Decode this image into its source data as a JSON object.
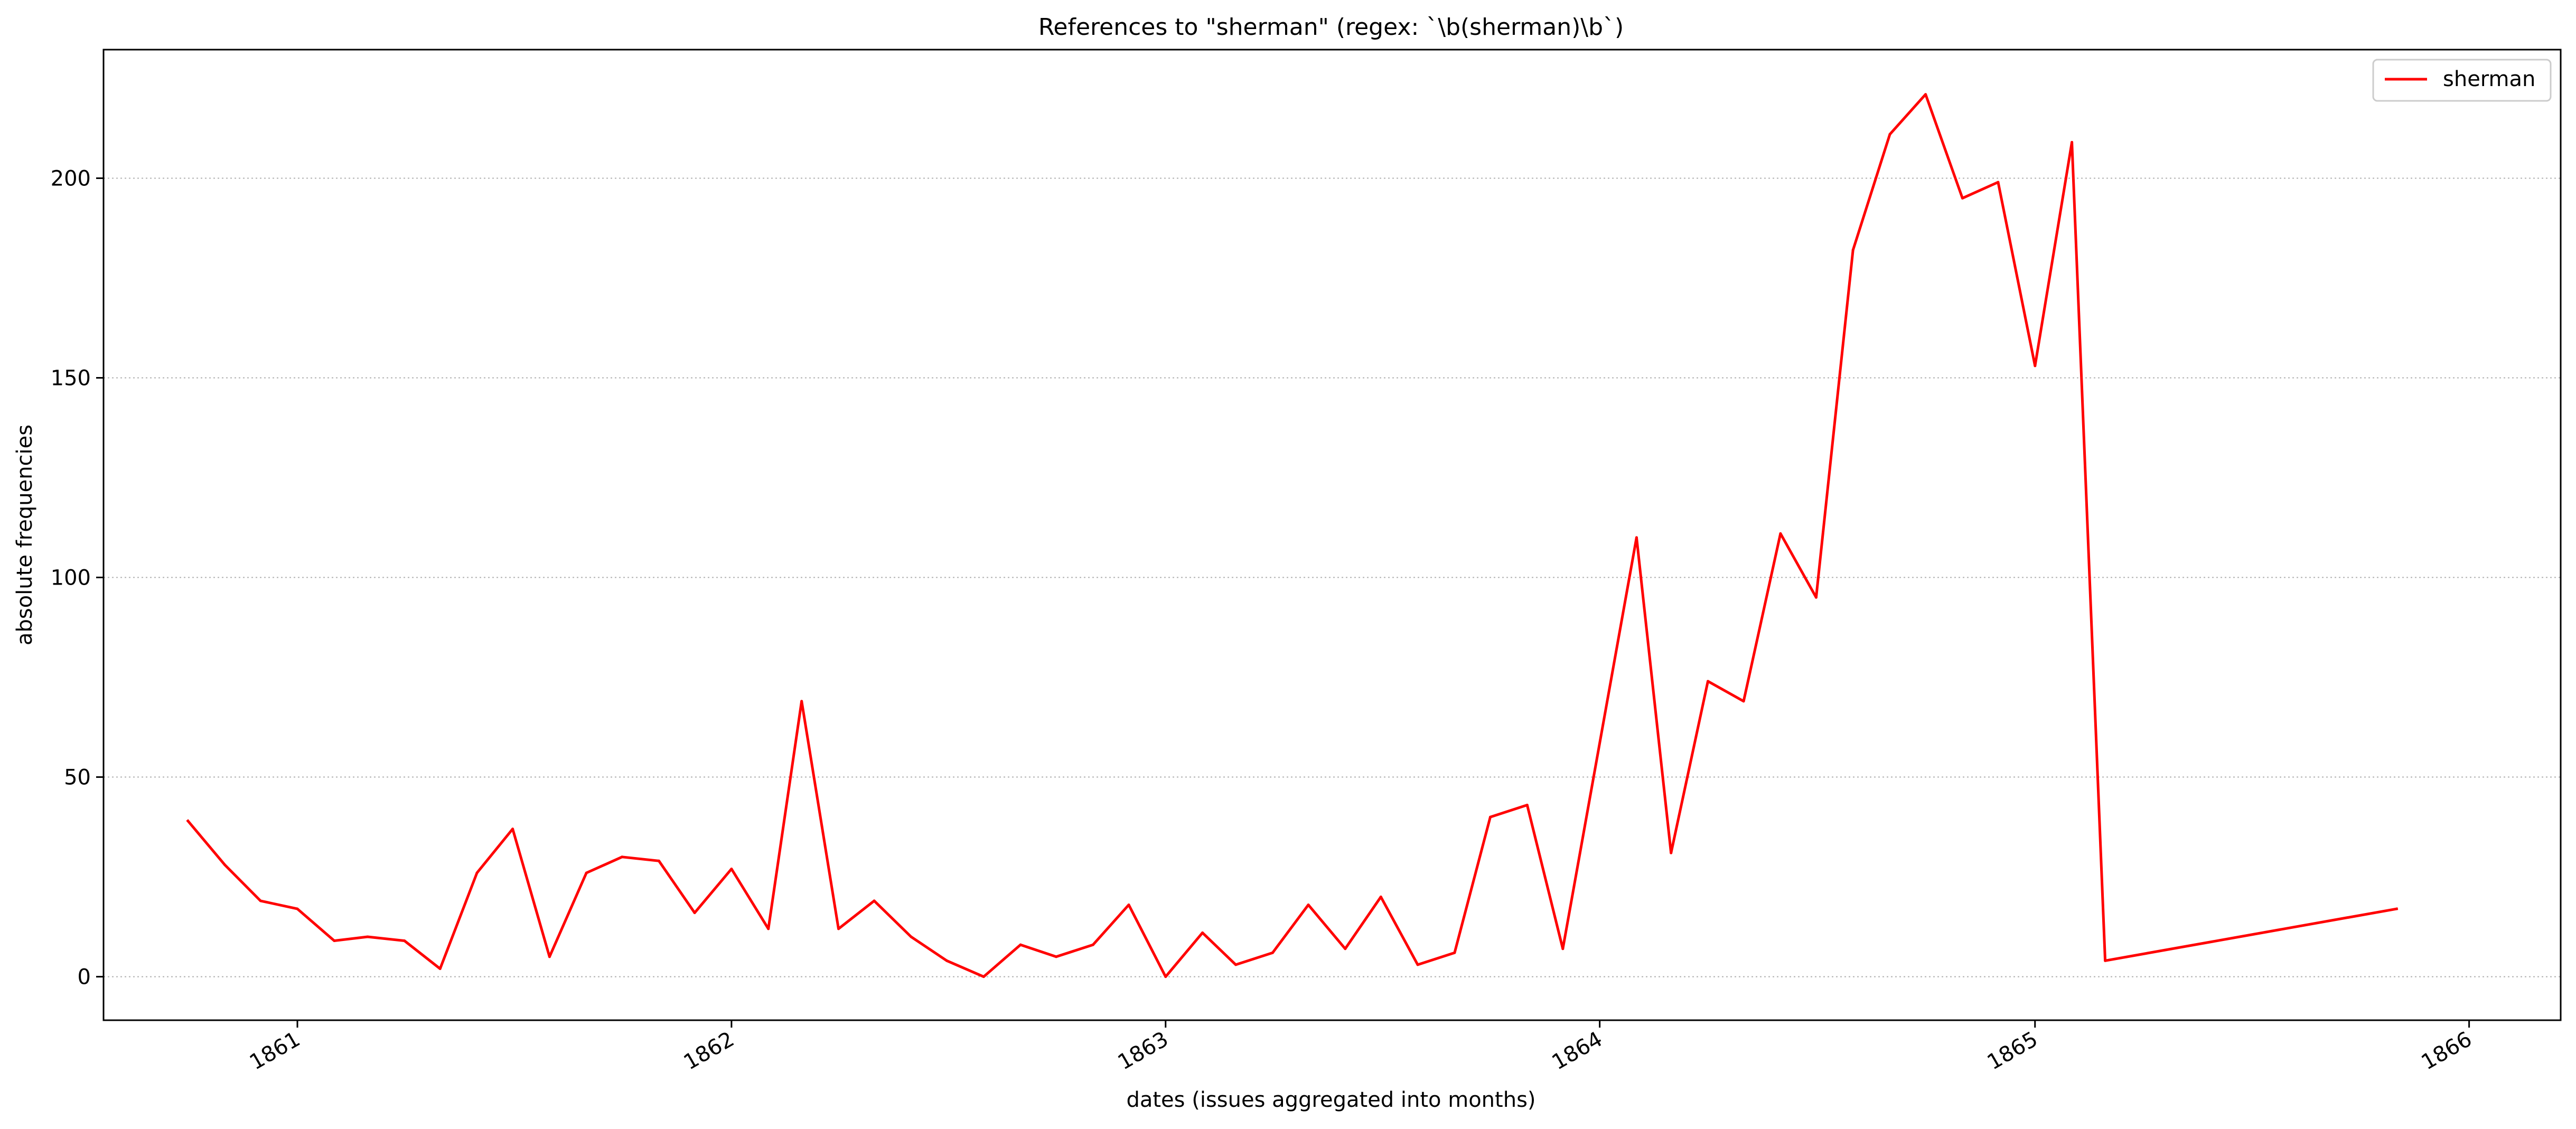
{
  "chart_data": {
    "type": "line",
    "title": "References to \"sherman\" (regex: `\\b(sherman)\\b`)",
    "xlabel": "dates (issues aggregated into months)",
    "ylabel": "absolute frequencies",
    "ylim": [
      -10.9,
      232.2
    ],
    "xlim": [
      "1860-07-22",
      "1866-03-19"
    ],
    "yticks": [
      0,
      50,
      100,
      150,
      200
    ],
    "xticks": [
      {
        "date": "1861-01-01",
        "label": "1861"
      },
      {
        "date": "1862-01-01",
        "label": "1862"
      },
      {
        "date": "1863-01-01",
        "label": "1863"
      },
      {
        "date": "1864-01-01",
        "label": "1864"
      },
      {
        "date": "1865-01-01",
        "label": "1865"
      },
      {
        "date": "1866-01-01",
        "label": "1866"
      }
    ],
    "grid": "horizontal, dotted",
    "legend_position": "top-right",
    "series": [
      {
        "name": "sherman",
        "color": "#ff0000",
        "points": [
          [
            "1860-10",
            39
          ],
          [
            "1860-11",
            28
          ],
          [
            "1860-12",
            19
          ],
          [
            "1861-01",
            17
          ],
          [
            "1861-02",
            9
          ],
          [
            "1861-03",
            10
          ],
          [
            "1861-04",
            9
          ],
          [
            "1861-05",
            2
          ],
          [
            "1861-06",
            26
          ],
          [
            "1861-07",
            37
          ],
          [
            "1861-08",
            5
          ],
          [
            "1861-09",
            26
          ],
          [
            "1861-10",
            30
          ],
          [
            "1861-11",
            29
          ],
          [
            "1861-12",
            16
          ],
          [
            "1862-01",
            27
          ],
          [
            "1862-02",
            12
          ],
          [
            "1862-03",
            69
          ],
          [
            "1862-04",
            12
          ],
          [
            "1862-05",
            19
          ],
          [
            "1862-06",
            10
          ],
          [
            "1862-07",
            4
          ],
          [
            "1862-08",
            0
          ],
          [
            "1862-09",
            8
          ],
          [
            "1862-10",
            5
          ],
          [
            "1862-11",
            8
          ],
          [
            "1862-12",
            18
          ],
          [
            "1863-01",
            0
          ],
          [
            "1863-02",
            11
          ],
          [
            "1863-03",
            3
          ],
          [
            "1863-04",
            6
          ],
          [
            "1863-05",
            18
          ],
          [
            "1863-06",
            7
          ],
          [
            "1863-07",
            20
          ],
          [
            "1863-08",
            3
          ],
          [
            "1863-09",
            6
          ],
          [
            "1863-10",
            40
          ],
          [
            "1863-11",
            43
          ],
          [
            "1863-12",
            7
          ],
          [
            "1864-02",
            110
          ],
          [
            "1864-03",
            31
          ],
          [
            "1864-04",
            74
          ],
          [
            "1864-05",
            69
          ],
          [
            "1864-06",
            111
          ],
          [
            "1864-07",
            95
          ],
          [
            "1864-08",
            182
          ],
          [
            "1864-09",
            211
          ],
          [
            "1864-10",
            221
          ],
          [
            "1864-11",
            195
          ],
          [
            "1864-12",
            199
          ],
          [
            "1865-01",
            153
          ],
          [
            "1865-02",
            209
          ],
          [
            "1865-03",
            4
          ],
          [
            "1865-11",
            17
          ]
        ]
      }
    ]
  }
}
